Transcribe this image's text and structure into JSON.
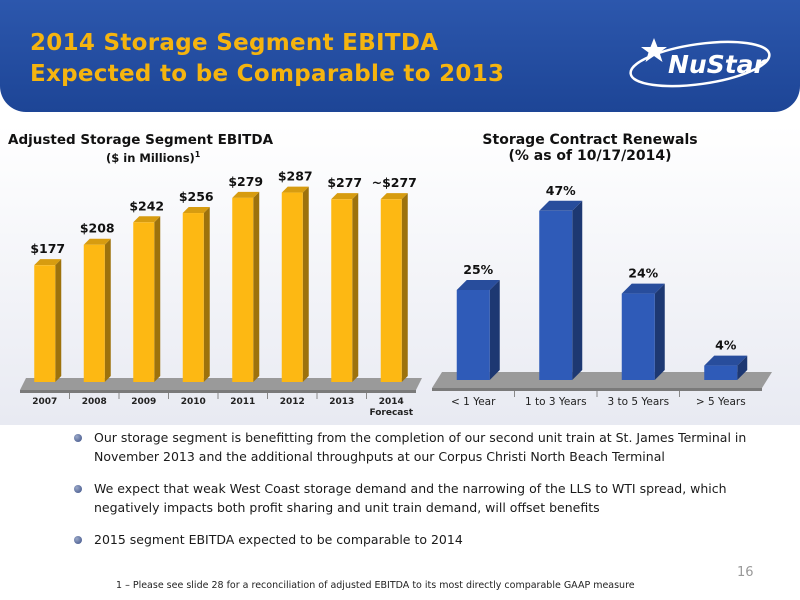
{
  "header": {
    "title_line1": "2014 Storage Segment EBITDA",
    "title_line2": "Expected to be Comparable to 2013",
    "logo_text": "NuStar"
  },
  "colors": {
    "header_blue": "#2350a8",
    "title_gold": "#f5b40f",
    "bar_gold": "#fdb813",
    "bar_blue": "#2f5bb8"
  },
  "chart_data": [
    {
      "type": "bar",
      "title": "Adjusted Storage Segment EBITDA",
      "subtitle": "($ in Millions)",
      "subtitle_superscript": "1",
      "categories": [
        "2007",
        "2008",
        "2009",
        "2010",
        "2011",
        "2012",
        "2013",
        "2014"
      ],
      "category_sublabels": [
        "",
        "",
        "",
        "",
        "",
        "",
        "",
        "Forecast"
      ],
      "values": [
        177,
        208,
        242,
        256,
        279,
        287,
        277,
        277
      ],
      "data_labels": [
        "$177",
        "$208",
        "$242",
        "$256",
        "$279",
        "$287",
        "$277",
        "~$277"
      ],
      "ylim": [
        0,
        300
      ],
      "color": "#fdb813",
      "grid": false
    },
    {
      "type": "bar",
      "title": "Storage Contract Renewals",
      "subtitle": "(% as of 10/17/2014)",
      "categories": [
        "< 1 Year",
        "1 to 3 Years",
        "3 to 5 Years",
        "> 5 Years"
      ],
      "values": [
        25,
        47,
        24,
        4
      ],
      "data_labels": [
        "25%",
        "47%",
        "24%",
        "4%"
      ],
      "ylim": [
        0,
        50
      ],
      "color": "#2f5bb8",
      "grid": false
    }
  ],
  "bullets": [
    "Our storage segment is benefitting from the completion of our second unit train at St. James Terminal in November 2013 and the additional throughputs at our Corpus Christi North Beach Terminal",
    "We expect that weak West Coast storage demand and the narrowing of the LLS to WTI spread, which negatively impacts both profit sharing and unit train demand, will offset benefits",
    "2015 segment EBITDA expected to be comparable to 2014"
  ],
  "footnote": "1 – Please see slide 28 for a reconciliation of adjusted EBITDA to its most directly comparable GAAP measure",
  "page_number": "16"
}
